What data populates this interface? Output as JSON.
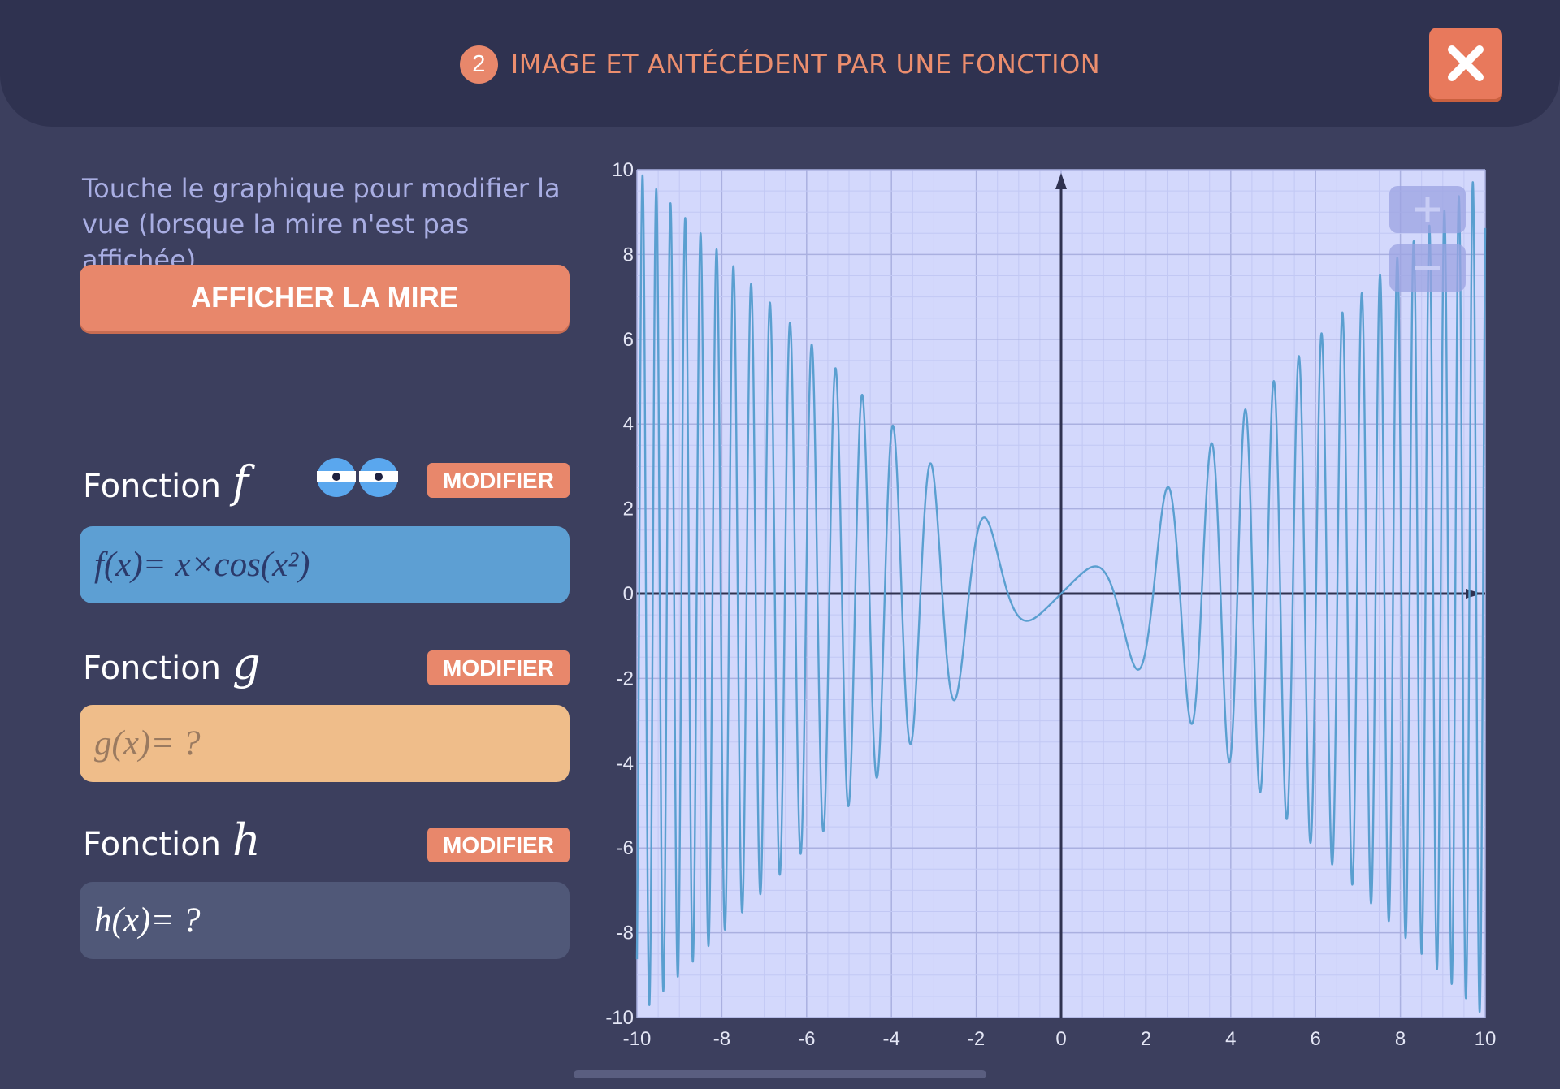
{
  "header": {
    "step_number": "2",
    "title": "IMAGE ET ANTÉCÉDENT PAR UNE FONCTION",
    "close_icon": "close-x-icon"
  },
  "sidebar": {
    "instructions_line1": "Touche le graphique pour modifier la",
    "instructions_line2": "vue (lorsque la mire n'est pas affichée).",
    "mire_button": "AFFICHER LA MIRE",
    "functions": [
      {
        "label": "Fonction",
        "letter": "f",
        "modify": "MODIFIER",
        "formula": "f(x)= x×cos(x²)",
        "visible_icon": "eyes-icon",
        "color": "#5d9fd3"
      },
      {
        "label": "Fonction",
        "letter": "g",
        "modify": "MODIFIER",
        "formula": "g(x)= ?",
        "color": "#efbd8a"
      },
      {
        "label": "Fonction",
        "letter": "h",
        "modify": "MODIFIER",
        "formula": "h(x)= ?",
        "color": "#505878"
      }
    ]
  },
  "colors": {
    "accent": "#e8876b",
    "background": "#3c3f5e",
    "header": "#2f3250",
    "plot_background": "#d3d8fc",
    "curve": "#5a9fd0"
  },
  "chart_data": {
    "type": "line",
    "function": "x×cos(x²)",
    "xlim": [
      -10,
      10
    ],
    "ylim": [
      -10,
      10
    ],
    "x_ticks": [
      -10,
      -8,
      -6,
      -4,
      -2,
      0,
      2,
      4,
      6,
      8,
      10
    ],
    "y_ticks": [
      10,
      8,
      6,
      4,
      2,
      0,
      -2,
      -4,
      -6,
      -8,
      -10
    ],
    "grid": true,
    "zoom_controls": [
      "zoom-in-icon",
      "zoom-out-icon"
    ]
  }
}
